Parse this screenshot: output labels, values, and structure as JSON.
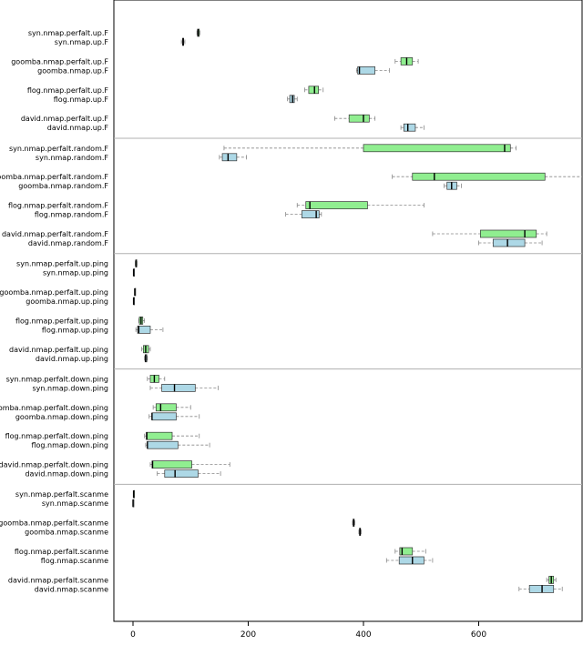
{
  "chart_data": {
    "type": "boxplot",
    "orientation": "horizontal",
    "title": "",
    "xlabel": "",
    "ylabel": "",
    "xlim": [
      -30,
      780
    ],
    "xticks": [
      0,
      200,
      400,
      600
    ],
    "grid": false,
    "legend": "none",
    "colors": {
      "perfalt": "#90ee90",
      "default": "#add8e6",
      "separator": "#b0b0b0",
      "whisker": "#888888"
    },
    "groups": [
      {
        "name": "up.F",
        "pairs": [
          [
            {
              "label": "syn.nmap.perfalt.up.F",
              "fill": "perfalt",
              "min": 111,
              "q1": 112,
              "median": 113,
              "q3": 115,
              "max": 116
            },
            {
              "label": "syn.nmap.up.F",
              "fill": "default",
              "min": 84,
              "q1": 86,
              "median": 87,
              "q3": 88,
              "max": 90
            }
          ],
          [
            {
              "label": "goomba.nmap.perfalt.up.F",
              "fill": "perfalt",
              "min": 455,
              "q1": 465,
              "median": 475,
              "q3": 485,
              "max": 495
            },
            {
              "label": "goomba.nmap.up.F",
              "fill": "default",
              "min": 388,
              "q1": 390,
              "median": 393,
              "q3": 420,
              "max": 445
            }
          ],
          [
            {
              "label": "flog.nmap.perfalt.up.F",
              "fill": "perfalt",
              "min": 298,
              "q1": 305,
              "median": 315,
              "q3": 322,
              "max": 330
            },
            {
              "label": "flog.nmap.up.F",
              "fill": "default",
              "min": 268,
              "q1": 272,
              "median": 277,
              "q3": 280,
              "max": 285
            }
          ],
          [
            {
              "label": "david.nmap.perfalt.up.F",
              "fill": "perfalt",
              "min": 350,
              "q1": 375,
              "median": 400,
              "q3": 410,
              "max": 420
            },
            {
              "label": "david.nmap.up.F",
              "fill": "default",
              "min": 465,
              "q1": 470,
              "median": 477,
              "q3": 490,
              "max": 505
            }
          ]
        ]
      },
      {
        "name": "random.F",
        "pairs": [
          [
            {
              "label": "syn.nmap.perfalt.random.F",
              "fill": "perfalt",
              "min": 158,
              "q1": 400,
              "median": 645,
              "q3": 655,
              "max": 665
            },
            {
              "label": "syn.nmap.random.F",
              "fill": "default",
              "min": 150,
              "q1": 155,
              "median": 165,
              "q3": 180,
              "max": 197
            }
          ],
          [
            {
              "label": "goomba.nmap.perfalt.random.F",
              "fill": "perfalt",
              "min": 450,
              "q1": 485,
              "median": 523,
              "q3": 715,
              "max": 780
            },
            {
              "label": "goomba.nmap.random.F",
              "fill": "default",
              "min": 540,
              "q1": 545,
              "median": 553,
              "q3": 562,
              "max": 570
            }
          ],
          [
            {
              "label": "flog.nmap.perfalt.random.F",
              "fill": "perfalt",
              "min": 285,
              "q1": 300,
              "median": 307,
              "q3": 407,
              "max": 505
            },
            {
              "label": "flog.nmap.random.F",
              "fill": "default",
              "min": 265,
              "q1": 293,
              "median": 318,
              "q3": 323,
              "max": 327
            }
          ],
          [
            {
              "label": "david.nmap.perfalt.random.F",
              "fill": "perfalt",
              "min": 520,
              "q1": 603,
              "median": 680,
              "q3": 700,
              "max": 718
            },
            {
              "label": "david.nmap.random.F",
              "fill": "default",
              "min": 600,
              "q1": 625,
              "median": 650,
              "q3": 680,
              "max": 710
            }
          ]
        ]
      },
      {
        "name": "up.ping",
        "pairs": [
          [
            {
              "label": "syn.nmap.perfalt.up.ping",
              "fill": "perfalt",
              "min": 4,
              "q1": 5,
              "median": 5,
              "q3": 6,
              "max": 7
            },
            {
              "label": "syn.nmap.up.ping",
              "fill": "default",
              "min": 1,
              "q1": 1,
              "median": 1,
              "q3": 2,
              "max": 2
            }
          ],
          [
            {
              "label": "goomba.nmap.perfalt.up.ping",
              "fill": "perfalt",
              "min": 3,
              "q1": 3,
              "median": 3,
              "q3": 4,
              "max": 4
            },
            {
              "label": "goomba.nmap.up.ping",
              "fill": "default",
              "min": 1,
              "q1": 1,
              "median": 1,
              "q3": 2,
              "max": 2
            }
          ],
          [
            {
              "label": "flog.nmap.perfalt.up.ping",
              "fill": "perfalt",
              "min": 10,
              "q1": 11,
              "median": 14,
              "q3": 17,
              "max": 20
            },
            {
              "label": "flog.nmap.up.ping",
              "fill": "default",
              "min": 5,
              "q1": 8,
              "median": 10,
              "q3": 30,
              "max": 52
            }
          ],
          [
            {
              "label": "david.nmap.perfalt.up.ping",
              "fill": "perfalt",
              "min": 15,
              "q1": 18,
              "median": 22,
              "q3": 27,
              "max": 30
            },
            {
              "label": "david.nmap.up.ping",
              "fill": "default",
              "min": 20,
              "q1": 21,
              "median": 22,
              "q3": 24,
              "max": 25
            }
          ]
        ]
      },
      {
        "name": "down.ping",
        "pairs": [
          [
            {
              "label": "syn.nmap.perfalt.down.ping",
              "fill": "perfalt",
              "min": 25,
              "q1": 30,
              "median": 37,
              "q3": 45,
              "max": 55
            },
            {
              "label": "syn.nmap.down.ping",
              "fill": "default",
              "min": 30,
              "q1": 50,
              "median": 72,
              "q3": 108,
              "max": 148
            }
          ],
          [
            {
              "label": "goomba.nmap.perfalt.down.ping",
              "fill": "perfalt",
              "min": 35,
              "q1": 40,
              "median": 48,
              "q3": 75,
              "max": 100
            },
            {
              "label": "goomba.nmap.down.ping",
              "fill": "default",
              "min": 28,
              "q1": 33,
              "median": 33,
              "q3": 75,
              "max": 115
            }
          ],
          [
            {
              "label": "flog.nmap.perfalt.down.ping",
              "fill": "perfalt",
              "min": 20,
              "q1": 23,
              "median": 24,
              "q3": 68,
              "max": 115
            },
            {
              "label": "flog.nmap.down.ping",
              "fill": "default",
              "min": 22,
              "q1": 25,
              "median": 25,
              "q3": 78,
              "max": 133
            }
          ],
          [
            {
              "label": "david.nmap.perfalt.down.ping",
              "fill": "perfalt",
              "min": 30,
              "q1": 33,
              "median": 34,
              "q3": 102,
              "max": 168
            },
            {
              "label": "david.nmap.down.ping",
              "fill": "default",
              "min": 42,
              "q1": 55,
              "median": 73,
              "q3": 113,
              "max": 152
            }
          ]
        ]
      },
      {
        "name": "scanme",
        "pairs": [
          [
            {
              "label": "syn.nmap.perfalt.scanme",
              "fill": "perfalt",
              "min": 1,
              "q1": 1,
              "median": 1,
              "q3": 2,
              "max": 2
            },
            {
              "label": "syn.nmap.scanme",
              "fill": "default",
              "min": 0,
              "q1": 0,
              "median": 0,
              "q3": 1,
              "max": 1
            }
          ],
          [
            {
              "label": "goomba.nmap.perfalt.scanme",
              "fill": "perfalt",
              "min": 381,
              "q1": 382,
              "median": 383,
              "q3": 384,
              "max": 385
            },
            {
              "label": "goomba.nmap.scanme",
              "fill": "default",
              "min": 392,
              "q1": 393,
              "median": 394,
              "q3": 395,
              "max": 396
            }
          ],
          [
            {
              "label": "flog.nmap.perfalt.scanme",
              "fill": "perfalt",
              "min": 455,
              "q1": 463,
              "median": 467,
              "q3": 485,
              "max": 508
            },
            {
              "label": "flog.nmap.scanme",
              "fill": "default",
              "min": 440,
              "q1": 462,
              "median": 485,
              "q3": 505,
              "max": 520
            }
          ],
          [
            {
              "label": "david.nmap.perfalt.scanme",
              "fill": "perfalt",
              "min": 718,
              "q1": 722,
              "median": 726,
              "q3": 730,
              "max": 734
            },
            {
              "label": "david.nmap.scanme",
              "fill": "default",
              "min": 670,
              "q1": 688,
              "median": 710,
              "q3": 730,
              "max": 745
            }
          ]
        ]
      }
    ]
  }
}
